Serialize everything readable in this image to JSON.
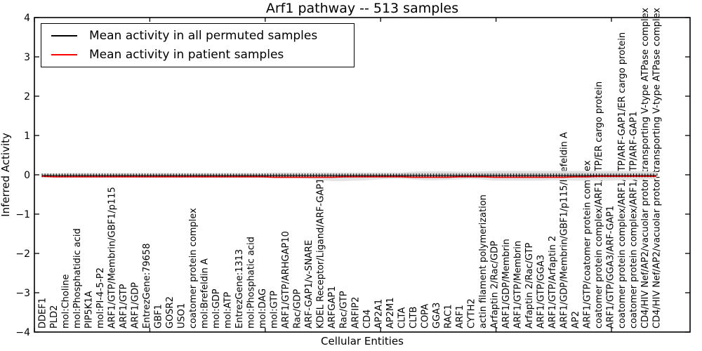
{
  "chart_data": {
    "type": "line",
    "title": "Arf1 pathway -- 513 samples",
    "xlabel": "Cellular Entities",
    "ylabel": "Inferred Activity",
    "ylim": [
      -4,
      4
    ],
    "ytick_values": [
      -4,
      -3,
      -2,
      -1,
      0,
      1,
      2,
      3,
      4
    ],
    "grid": false,
    "legend_position": "upper left",
    "categories": [
      "DDEF1",
      "PLD2",
      "mol:Choline",
      "mol:Phosphatidic acid",
      "PIP5K1A",
      "mol:PI-4-5-P2",
      "ARF1/GTP/Membrin/GBF1/p115",
      "ARF1/GTP",
      "ARF1/GDP",
      "EntrezGene:79658",
      "GBF1",
      "GOSR2",
      "USO1",
      "coatomer protein complex",
      "mol:Brefeldin A",
      "mol:GDP",
      "mol:ATP",
      "EntrezGene:1313",
      "mol:Phosphatic acid",
      "mol:DAG",
      "mol:GTP",
      "ARF1/GTP/ARHGAP10",
      "Rac/GDP",
      "ARF-GAP1/v-SNARE",
      "KDEL Receptor/Ligand/ARF-GAP1",
      "ARFGAP1",
      "Rac/GTP",
      "ARFIP2",
      "CD4",
      "AP2A1",
      "AP2M1",
      "CLTA",
      "CLTB",
      "COPA",
      "GGA3",
      "RAC1",
      "ARF1",
      "CYTH2",
      "actin filament polymerization",
      "Arfaptin 2/Rac/GDP",
      "ARF1/GDP/Membrin",
      "ARF1/GTP/Membrin",
      "Arfaptin 2/Rac/GTP",
      "ARF1/GTP/GGA3",
      "ARF1/GTP/Arfaptin 2",
      "ARF1/GDP/Membrin/GBF1/p115/Brefeldin A",
      "AP2",
      "ARF1/GTP/coatomer protein complex",
      "coatomer protein complex/ARF1/GTP/ER cargo protein",
      "ARF1/GTP/GGA3/ARF-GAP1",
      "coatomer protein complex/ARF1/GTP/ARF-GAP1/ER cargo protein",
      "coatomer protein complex/ARF1/GTP/ARF-GAP1",
      "CD4/HIV Nef/AP2/vacuolar proton-transporting V-type ATPase complex",
      "CD4/HIV Nef/AP2/vacuolar proton-transporting V-type ATPase complex"
    ],
    "series": [
      {
        "name": "Mean activity in all permuted samples",
        "color": "#000000",
        "marker": "+",
        "values": [
          -0.02,
          -0.02,
          -0.02,
          -0.02,
          -0.02,
          -0.02,
          -0.02,
          -0.02,
          -0.02,
          -0.02,
          -0.02,
          -0.02,
          -0.02,
          -0.02,
          -0.02,
          -0.02,
          -0.02,
          -0.02,
          -0.02,
          -0.02,
          -0.02,
          -0.02,
          -0.02,
          -0.02,
          -0.02,
          -0.02,
          -0.02,
          -0.02,
          -0.02,
          -0.02,
          -0.02,
          -0.02,
          -0.02,
          -0.02,
          -0.02,
          -0.02,
          -0.02,
          -0.02,
          -0.02,
          -0.02,
          -0.02,
          -0.02,
          -0.02,
          -0.02,
          -0.02,
          -0.02,
          -0.02,
          -0.02,
          -0.02,
          -0.02,
          -0.02,
          -0.02,
          -0.02,
          -0.02
        ]
      },
      {
        "name": "Mean activity in patient samples",
        "color": "#ff0000",
        "marker": "none",
        "values": [
          -0.04,
          -0.05,
          -0.05,
          -0.05,
          -0.05,
          -0.05,
          -0.05,
          -0.05,
          -0.05,
          -0.05,
          -0.05,
          -0.05,
          -0.05,
          -0.05,
          -0.05,
          -0.05,
          -0.05,
          -0.05,
          -0.05,
          -0.05,
          -0.06,
          -0.06,
          -0.06,
          -0.06,
          -0.06,
          -0.06,
          -0.05,
          -0.05,
          -0.05,
          -0.05,
          -0.05,
          -0.05,
          -0.06,
          -0.06,
          -0.06,
          -0.06,
          -0.05,
          -0.05,
          -0.05,
          -0.06,
          -0.06,
          -0.06,
          -0.06,
          -0.06,
          -0.06,
          -0.06,
          -0.05,
          -0.05,
          -0.04,
          -0.04,
          -0.04,
          -0.04,
          -0.04,
          -0.04
        ]
      }
    ],
    "band": {
      "name": "permuted samples spread",
      "color": "#e4e4e4",
      "inner_color": "#d3d3d3",
      "high": [
        0.04,
        0.04,
        0.05,
        0.05,
        0.05,
        0.05,
        0.05,
        0.05,
        0.05,
        0.05,
        0.05,
        0.05,
        0.05,
        0.05,
        0.05,
        0.05,
        0.05,
        0.05,
        0.05,
        0.05,
        0.06,
        0.06,
        0.06,
        0.06,
        0.06,
        0.06,
        0.06,
        0.06,
        0.06,
        0.06,
        0.06,
        0.06,
        0.08,
        0.09,
        0.09,
        0.09,
        0.08,
        0.08,
        0.09,
        0.1,
        0.1,
        0.1,
        0.1,
        0.1,
        0.1,
        0.1,
        0.1,
        0.1,
        0.1,
        0.1,
        0.1,
        0.1,
        0.09,
        0.08
      ],
      "low": [
        -0.05,
        -0.05,
        -0.06,
        -0.06,
        -0.06,
        -0.06,
        -0.07,
        -0.07,
        -0.07,
        -0.07,
        -0.07,
        -0.07,
        -0.07,
        -0.07,
        -0.08,
        -0.08,
        -0.08,
        -0.08,
        -0.08,
        -0.08,
        -0.09,
        -0.09,
        -0.09,
        -0.1,
        -0.14,
        -0.16,
        -0.16,
        -0.15,
        -0.14,
        -0.12,
        -0.1,
        -0.1,
        -0.12,
        -0.14,
        -0.14,
        -0.13,
        -0.12,
        -0.1,
        -0.12,
        -0.15,
        -0.15,
        -0.15,
        -0.15,
        -0.15,
        -0.14,
        -0.14,
        -0.15,
        -0.15,
        -0.15,
        -0.15,
        -0.14,
        -0.13,
        -0.12,
        -0.1
      ]
    }
  }
}
